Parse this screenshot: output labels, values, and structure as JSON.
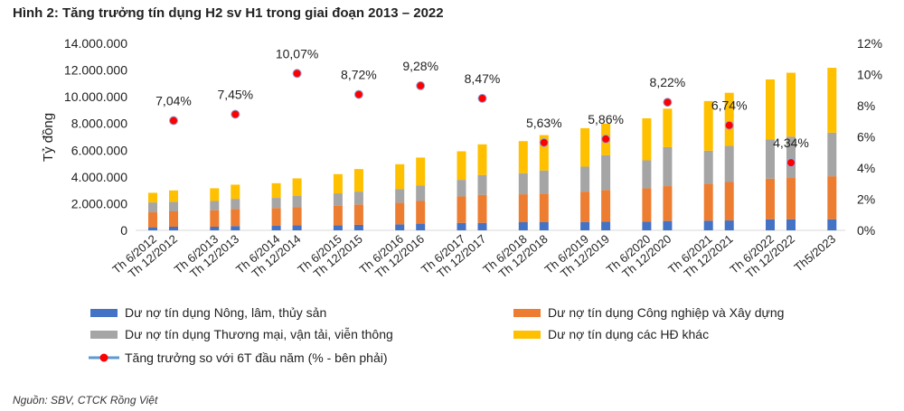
{
  "title": "Hình 2: Tăng trưởng tín dụng H2 sv H1 trong giai đoạn 2013 – 2022",
  "source": "Nguồn: SBV, CTCK Rồng Việt",
  "chart_data": {
    "type": "bar",
    "stacked": true,
    "ylabel": "Tỷ đồng",
    "ylim": [
      0,
      14000000
    ],
    "y_ticks": [
      "0",
      "2.000.000",
      "4.000.000",
      "6.000.000",
      "8.000.000",
      "10.000.000",
      "12.000.000",
      "14.000.000"
    ],
    "y2lim": [
      0,
      12
    ],
    "y2_ticks": [
      "0%",
      "2%",
      "4%",
      "6%",
      "8%",
      "10%",
      "12%"
    ],
    "categories": [
      "Th 6/2012",
      "Th 12/2012",
      "Th 6/2013",
      "Th 12/2013",
      "Th 6/2014",
      "Th 12/2014",
      "Th 6/2015",
      "Th 12/2015",
      "Th 6/2016",
      "Th 12/2016",
      "Th 6/2017",
      "Th 12/2017",
      "Th 6/2018",
      "Th 12/2018",
      "Th 6/2019",
      "Th 12/2019",
      "Th 6/2020",
      "Th 12/2020",
      "Th 6/2021",
      "Th 12/2021",
      "Th 6/2022",
      "Th 12/2022",
      "Th5/2023"
    ],
    "series": [
      {
        "name": "Dư nợ tín dụng Nông, lâm, thủy sản",
        "color": "#4472c4",
        "values": [
          230000,
          270000,
          270000,
          320000,
          340000,
          380000,
          380000,
          410000,
          450000,
          500000,
          560000,
          560000,
          610000,
          610000,
          630000,
          650000,
          650000,
          700000,
          720000,
          740000,
          830000,
          830000,
          830000
        ]
      },
      {
        "name": "Dư nợ tín dụng Công nghiệp và Xây dựng",
        "color": "#ed7d31",
        "values": [
          1120000,
          1150000,
          1240000,
          1280000,
          1330000,
          1350000,
          1470000,
          1530000,
          1620000,
          1700000,
          1980000,
          2100000,
          2090000,
          2140000,
          2270000,
          2370000,
          2500000,
          2610000,
          2770000,
          2880000,
          3040000,
          3090000,
          3220000
        ]
      },
      {
        "name": "Dư nợ tín dụng Thương mại, vận tải, viễn thông",
        "color": "#a5a5a5",
        "values": [
          740000,
          720000,
          690000,
          760000,
          760000,
          840000,
          920000,
          960000,
          1030000,
          1150000,
          1240000,
          1480000,
          1580000,
          1730000,
          1870000,
          2610000,
          2090000,
          2920000,
          2470000,
          2700000,
          2950000,
          3100000,
          3260000
        ]
      },
      {
        "name": "Dư nợ tín dụng các HĐ khác",
        "color": "#ffc000",
        "values": [
          720000,
          850000,
          950000,
          1060000,
          1100000,
          1320000,
          1440000,
          1690000,
          1850000,
          2100000,
          2140000,
          2300000,
          2400000,
          2650000,
          2880000,
          2360000,
          3150000,
          2880000,
          3720000,
          3980000,
          4480000,
          4780000,
          4860000
        ]
      }
    ],
    "line_series": {
      "name": "Tăng trưởng so với 6T đầu năm (% - bên phải)",
      "marker_color": "#ff0000",
      "line_color": "#5b9bd5",
      "values": [
        null,
        7.04,
        null,
        7.45,
        null,
        10.07,
        null,
        8.72,
        null,
        9.28,
        null,
        8.47,
        null,
        5.63,
        null,
        5.86,
        null,
        8.22,
        null,
        6.74,
        null,
        4.34,
        null
      ],
      "labels": [
        null,
        "7,04%",
        null,
        "7,45%",
        null,
        "10,07%",
        null,
        "8,72%",
        null,
        "9,28%",
        null,
        "8,47%",
        null,
        "5,63%",
        null,
        "5,86%",
        null,
        "8,22%",
        null,
        "6,74%",
        null,
        "4,34%",
        null
      ]
    },
    "legend_position": "bottom",
    "grid": false
  }
}
